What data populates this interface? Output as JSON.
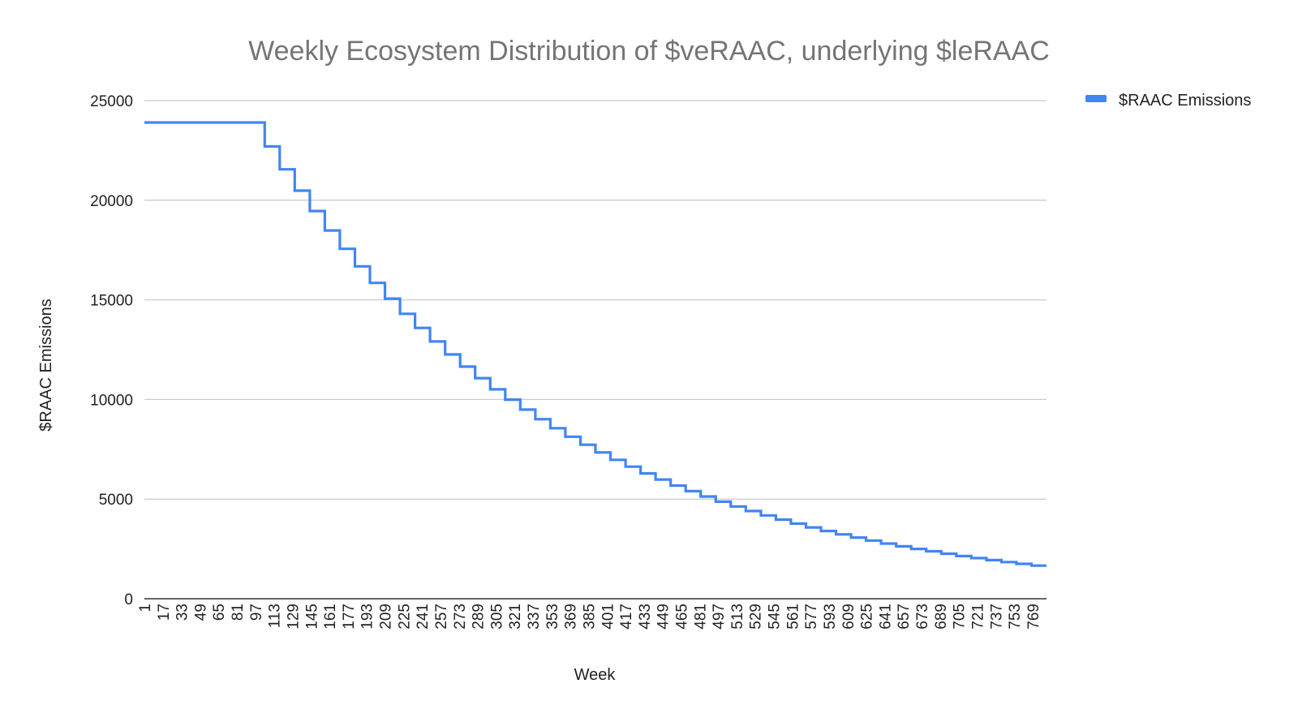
{
  "chart_data": {
    "type": "line",
    "step": true,
    "title": "Weekly Ecosystem Distribution of $veRAAC, underlying $leRAAC",
    "xlabel": "Week",
    "ylabel": "$RAAC Emissions",
    "ylim": [
      0,
      25000
    ],
    "y_ticks": [
      "25000",
      "20000",
      "15000",
      "10000",
      "5000",
      "0"
    ],
    "y_tick_values": [
      25000,
      20000,
      15000,
      10000,
      5000,
      0
    ],
    "x_range": [
      1,
      781
    ],
    "x_tick_labels": [
      "1",
      "17",
      "33",
      "49",
      "65",
      "81",
      "97",
      "113",
      "129",
      "145",
      "161",
      "177",
      "193",
      "209",
      "225",
      "241",
      "257",
      "273",
      "289",
      "305",
      "321",
      "337",
      "353",
      "369",
      "385",
      "401",
      "417",
      "433",
      "449",
      "465",
      "481",
      "497",
      "513",
      "529",
      "545",
      "561",
      "577",
      "593",
      "609",
      "625",
      "641",
      "657",
      "673",
      "689",
      "705",
      "721",
      "737",
      "753",
      "769"
    ],
    "grid": true,
    "legend": {
      "position": "top-right",
      "entries": [
        "$RAAC Emissions"
      ]
    },
    "series": [
      {
        "name": "$RAAC Emissions",
        "color": "#4285f4",
        "points": [
          {
            "week": 1,
            "value": 23900
          },
          {
            "week": 105,
            "value": 22700
          },
          {
            "week": 118,
            "value": 21550
          },
          {
            "week": 131,
            "value": 20480
          },
          {
            "week": 144,
            "value": 19460
          },
          {
            "week": 157,
            "value": 18480
          },
          {
            "week": 170,
            "value": 17560
          },
          {
            "week": 183,
            "value": 16680
          },
          {
            "week": 196,
            "value": 15850
          },
          {
            "week": 209,
            "value": 15060
          },
          {
            "week": 222,
            "value": 14300
          },
          {
            "week": 235,
            "value": 13590
          },
          {
            "week": 248,
            "value": 12910
          },
          {
            "week": 261,
            "value": 12260
          },
          {
            "week": 274,
            "value": 11650
          },
          {
            "week": 287,
            "value": 11070
          },
          {
            "week": 300,
            "value": 10510
          },
          {
            "week": 313,
            "value": 9990
          },
          {
            "week": 326,
            "value": 9490
          },
          {
            "week": 339,
            "value": 9010
          },
          {
            "week": 352,
            "value": 8560
          },
          {
            "week": 365,
            "value": 8130
          },
          {
            "week": 378,
            "value": 7730
          },
          {
            "week": 391,
            "value": 7340
          },
          {
            "week": 404,
            "value": 6970
          },
          {
            "week": 417,
            "value": 6630
          },
          {
            "week": 430,
            "value": 6290
          },
          {
            "week": 443,
            "value": 5980
          },
          {
            "week": 456,
            "value": 5680
          },
          {
            "week": 469,
            "value": 5400
          },
          {
            "week": 482,
            "value": 5130
          },
          {
            "week": 495,
            "value": 4870
          },
          {
            "week": 508,
            "value": 4630
          },
          {
            "week": 521,
            "value": 4400
          },
          {
            "week": 534,
            "value": 4180
          },
          {
            "week": 547,
            "value": 3970
          },
          {
            "week": 560,
            "value": 3770
          },
          {
            "week": 573,
            "value": 3580
          },
          {
            "week": 586,
            "value": 3400
          },
          {
            "week": 599,
            "value": 3230
          },
          {
            "week": 612,
            "value": 3070
          },
          {
            "week": 625,
            "value": 2920
          },
          {
            "week": 638,
            "value": 2770
          },
          {
            "week": 651,
            "value": 2630
          },
          {
            "week": 664,
            "value": 2500
          },
          {
            "week": 677,
            "value": 2380
          },
          {
            "week": 690,
            "value": 2260
          },
          {
            "week": 703,
            "value": 2140
          },
          {
            "week": 716,
            "value": 2040
          },
          {
            "week": 729,
            "value": 1940
          },
          {
            "week": 742,
            "value": 1840
          },
          {
            "week": 755,
            "value": 1750
          },
          {
            "week": 768,
            "value": 1660
          },
          {
            "week": 781,
            "value": 1660
          }
        ]
      }
    ]
  }
}
